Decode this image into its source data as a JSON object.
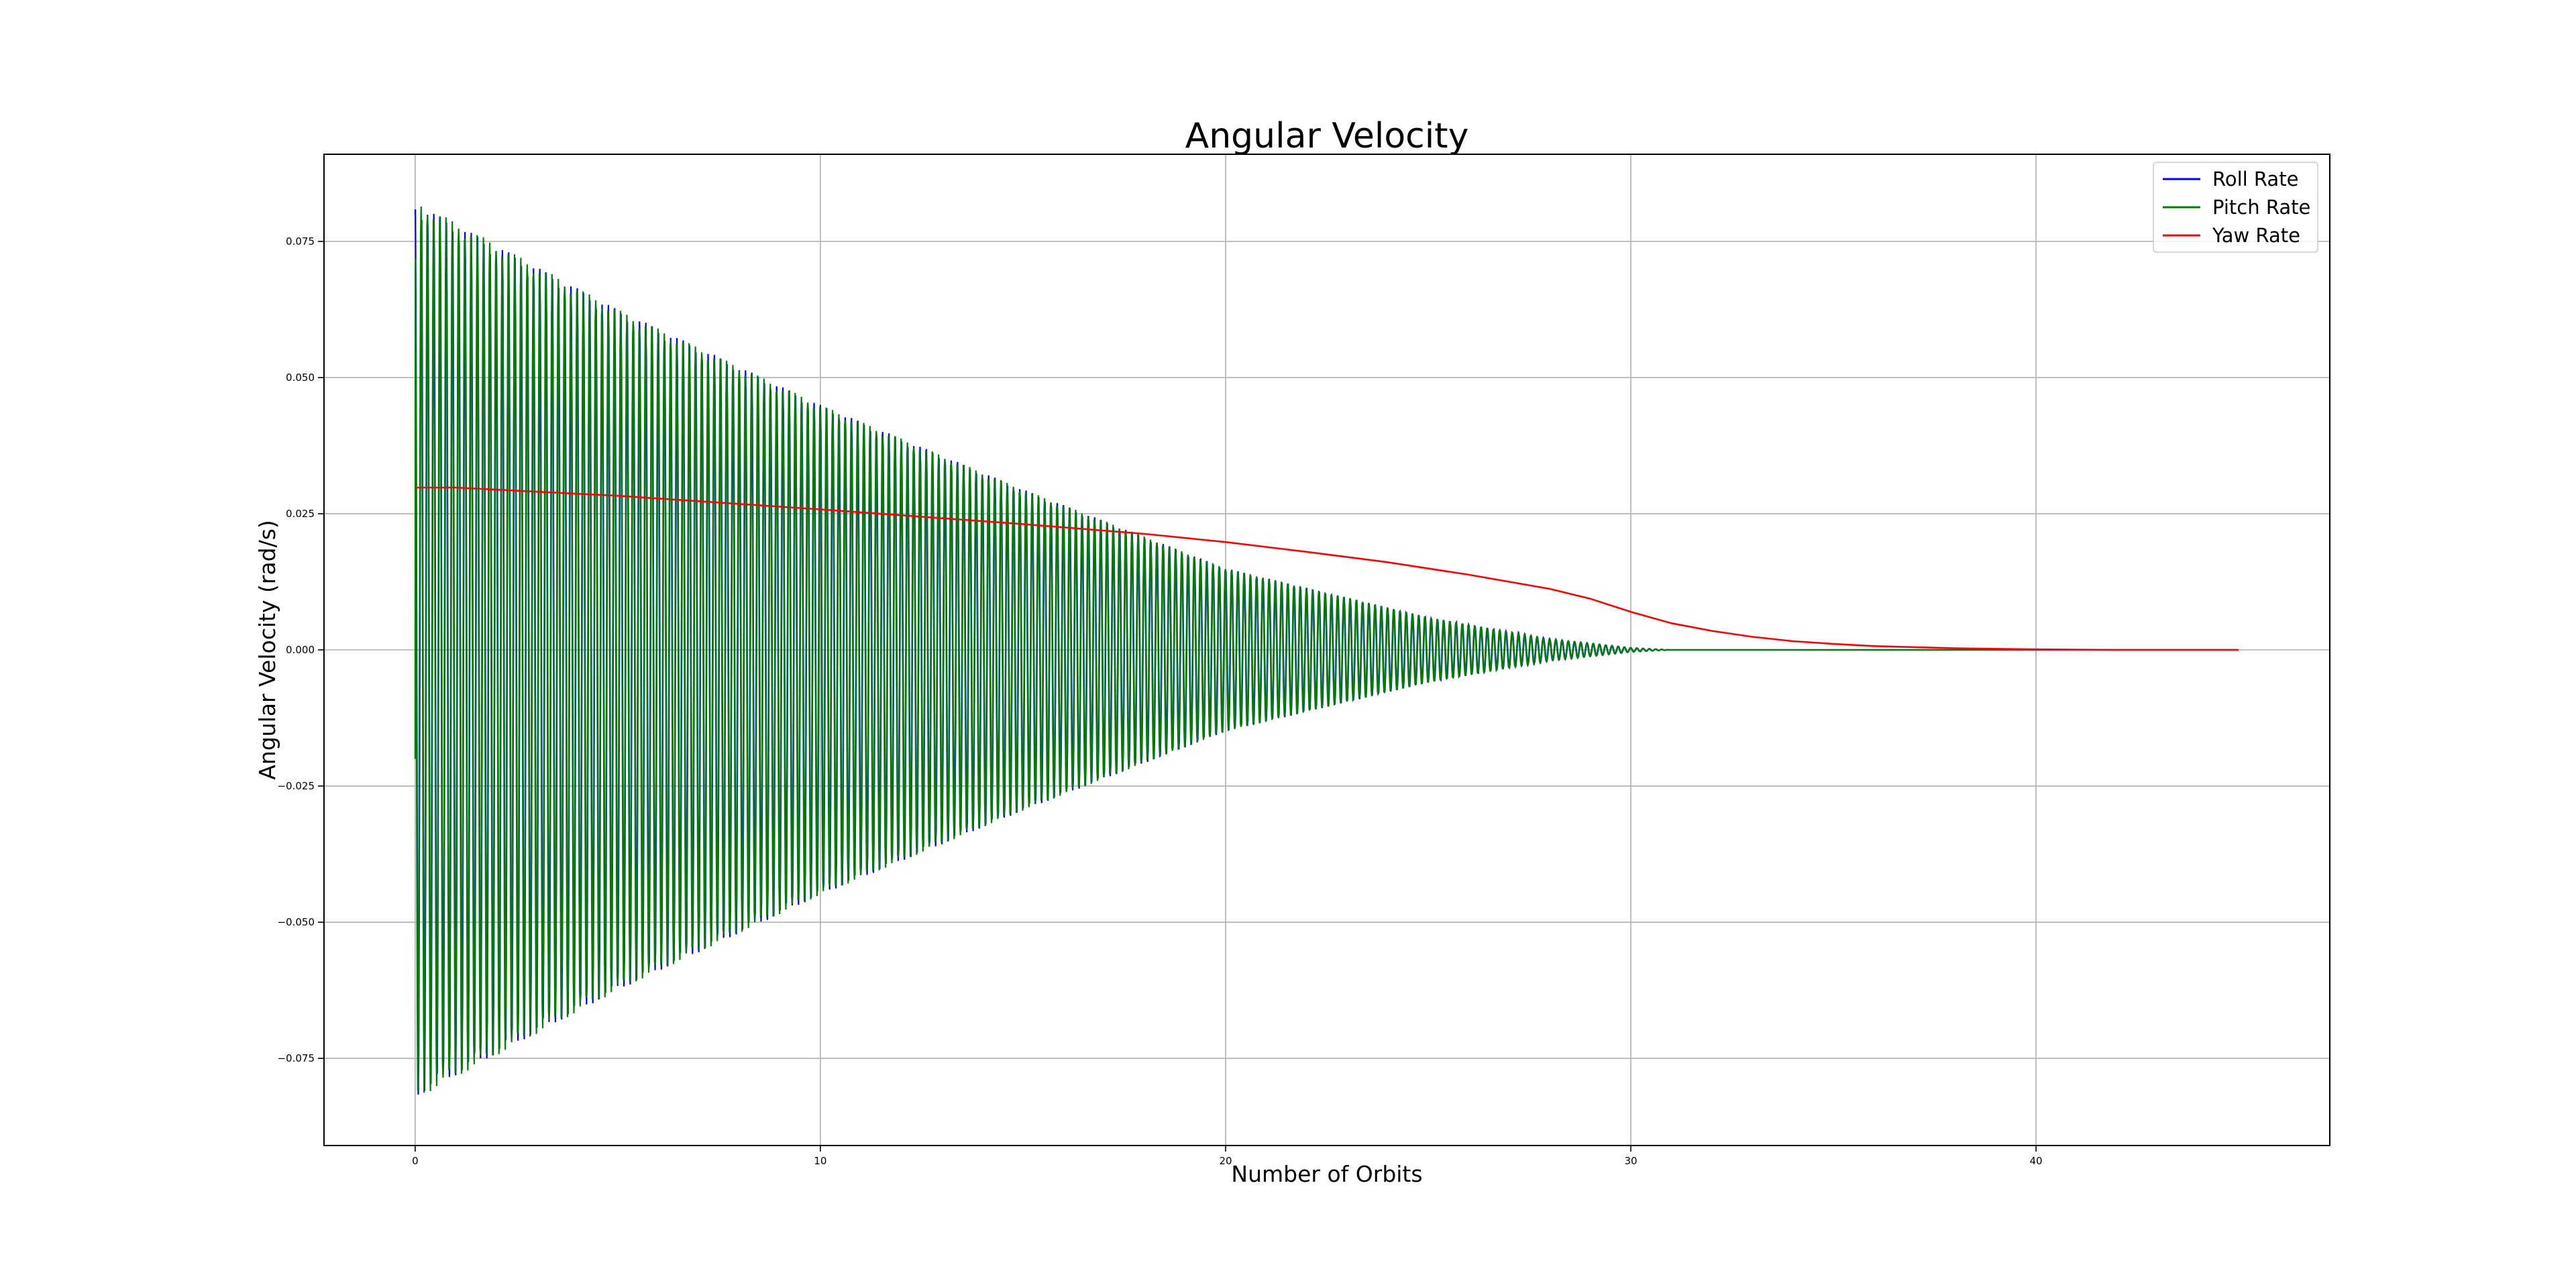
{
  "chart_data": {
    "type": "line",
    "title": "Angular Velocity",
    "xlabel": "Number of Orbits",
    "ylabel": "Angular Velocity (rad/s)",
    "xlim": [
      -2.25,
      47.25
    ],
    "ylim": [
      -0.091,
      0.091
    ],
    "x_ticks": [
      0,
      10,
      20,
      30,
      40
    ],
    "x_tick_labels": [
      "0",
      "10",
      "20",
      "30",
      "40"
    ],
    "y_ticks": [
      -0.075,
      -0.05,
      -0.025,
      0.0,
      0.025,
      0.05,
      0.075
    ],
    "y_tick_labels": [
      "−0.075",
      "−0.050",
      "−0.025",
      "0.000",
      "0.025",
      "0.050",
      "0.075"
    ],
    "grid": true,
    "legend_position": "top-right",
    "series": [
      {
        "name": "Roll Rate",
        "color": "#0000ff",
        "kind": "decaying-oscillation",
        "initial_value": 0.08,
        "envelope_x": [
          0,
          5,
          10,
          15,
          20,
          25,
          28,
          30,
          31
        ],
        "envelope_amplitude": [
          0.082,
          0.0625,
          0.045,
          0.0295,
          0.015,
          0.006,
          0.002,
          0.0004,
          0.0
        ],
        "oscillations_per_orbit": 6.5,
        "x_end": 45
      },
      {
        "name": "Pitch Rate",
        "color": "#008000",
        "kind": "decaying-oscillation",
        "initial_value": -0.02,
        "envelope_x": [
          0,
          5,
          10,
          15,
          20,
          25,
          28,
          30,
          31
        ],
        "envelope_amplitude": [
          0.0825,
          0.0625,
          0.045,
          0.0295,
          0.015,
          0.006,
          0.002,
          0.0004,
          0.0
        ],
        "oscillations_per_orbit": 6.5,
        "x_end": 45
      },
      {
        "name": "Yaw Rate",
        "color": "#ff0000",
        "kind": "line",
        "x": [
          0,
          1,
          5,
          10,
          15,
          18,
          20,
          22,
          24,
          26,
          28,
          29,
          30,
          31,
          32,
          33,
          34,
          35,
          36,
          38,
          40,
          42,
          45
        ],
        "y": [
          0.0298,
          0.0298,
          0.0283,
          0.0258,
          0.0231,
          0.0213,
          0.0198,
          0.018,
          0.0161,
          0.0138,
          0.0112,
          0.0094,
          0.007,
          0.0049,
          0.0035,
          0.0024,
          0.0016,
          0.0011,
          0.0007,
          0.0003,
          0.0001,
          0.0,
          0.0
        ]
      }
    ]
  }
}
